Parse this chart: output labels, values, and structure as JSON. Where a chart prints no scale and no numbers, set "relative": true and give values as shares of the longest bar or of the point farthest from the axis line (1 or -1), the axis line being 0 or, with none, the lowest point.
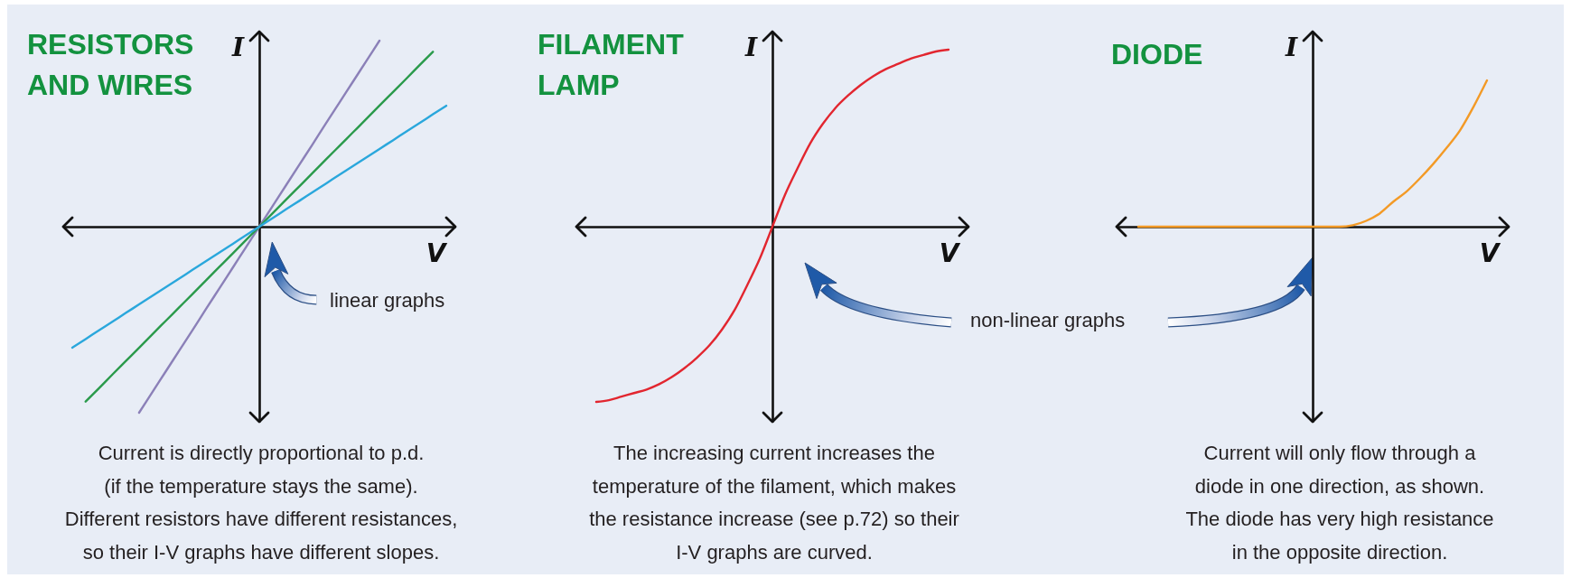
{
  "chart_data": [
    {
      "type": "line",
      "title": "RESISTORS AND WIRES",
      "xlabel": "V",
      "ylabel": "I",
      "relative": true,
      "categories": [
        null,
        null,
        null,
        null,
        null,
        null,
        null,
        null,
        null,
        null,
        null,
        null,
        null,
        null,
        null,
        null,
        null,
        null,
        null,
        null,
        null,
        null,
        null,
        null,
        null,
        null,
        null,
        null,
        null
      ],
      "series": [
        {
          "color": "#8b80b8",
          "values": [
            null,
            null,
            null,
            null,
            null,
            -1,
            -0.889,
            -0.778,
            -0.667,
            -0.556,
            -0.444,
            -0.333,
            -0.222,
            -0.111,
            0,
            0.111,
            0.222,
            0.333,
            0.444,
            0.556,
            0.667,
            0.778,
            0.889,
            1,
            null,
            null,
            null,
            null,
            null
          ]
        },
        {
          "color": "#2a9a4b",
          "values": [
            null,
            -0.94,
            -0.868,
            -0.795,
            -0.723,
            -0.651,
            -0.578,
            -0.506,
            -0.434,
            -0.362,
            -0.289,
            -0.217,
            -0.145,
            -0.072,
            0,
            0.072,
            0.145,
            0.217,
            0.289,
            0.362,
            0.434,
            0.506,
            0.578,
            0.651,
            0.723,
            0.795,
            0.868,
            0.94,
            null
          ]
        },
        {
          "color": "#2aa7dc",
          "values": [
            -0.65,
            -0.604,
            -0.557,
            -0.511,
            -0.464,
            -0.418,
            -0.371,
            -0.325,
            -0.279,
            -0.232,
            -0.186,
            -0.139,
            -0.093,
            -0.046,
            0,
            0.046,
            0.093,
            0.139,
            0.186,
            0.232,
            0.279,
            0.325,
            0.371,
            0.418,
            0.464,
            0.511,
            0.557,
            0.604,
            0.65
          ]
        }
      ],
      "annotations": [
        "linear graphs",
        "Current is directly proportional to p.d.\n(if the temperature stays the same).\nDifferent resistors have different resistances,\nso their I-V graphs have different slopes."
      ]
    },
    {
      "type": "line",
      "title": "FILAMENT LAMP",
      "xlabel": "V",
      "ylabel": "I",
      "relative": true,
      "categories": [
        null,
        null,
        null,
        null,
        null,
        null,
        null,
        null,
        null,
        null,
        null,
        null,
        null,
        null,
        null,
        null,
        null,
        null,
        null,
        null,
        null,
        null,
        null,
        null,
        null,
        null,
        null,
        null,
        null
      ],
      "series": [
        {
          "color": "#e2262f",
          "values": [
            -0.99,
            -0.98,
            -0.96,
            -0.94,
            -0.92,
            -0.89,
            -0.85,
            -0.8,
            -0.74,
            -0.67,
            -0.58,
            -0.47,
            -0.33,
            -0.18,
            0,
            0.18,
            0.33,
            0.47,
            0.58,
            0.67,
            0.74,
            0.8,
            0.85,
            0.89,
            0.92,
            0.95,
            0.97,
            0.99,
            1
          ]
        }
      ],
      "annotations": [
        "non-linear graphs",
        "The increasing current increases the\ntemperature of the filament, which makes\nthe resistance increase (see p.72) so their\nI-V graphs are curved."
      ]
    },
    {
      "type": "line",
      "title": "DIODE",
      "xlabel": "V",
      "ylabel": "I",
      "relative": true,
      "categories": [
        null,
        null,
        null,
        null,
        null,
        null,
        null,
        null,
        null,
        null,
        null,
        null,
        null,
        null,
        null,
        null,
        null,
        null,
        null,
        null,
        null,
        null,
        null,
        null,
        null,
        null,
        null
      ],
      "series": [
        {
          "color": "#f39a26",
          "values": [
            0,
            0,
            0,
            0,
            0,
            0,
            0,
            0,
            0,
            0,
            0,
            0,
            0,
            0,
            0,
            0,
            0.01,
            0.04,
            0.09,
            0.17,
            0.24,
            0.33,
            0.43,
            0.54,
            0.66,
            0.82,
            1
          ]
        }
      ],
      "annotations": [
        "Current will only flow through a\ndiode in one direction, as shown.\nThe diode has very high resistance\nin the opposite direction."
      ]
    }
  ]
}
